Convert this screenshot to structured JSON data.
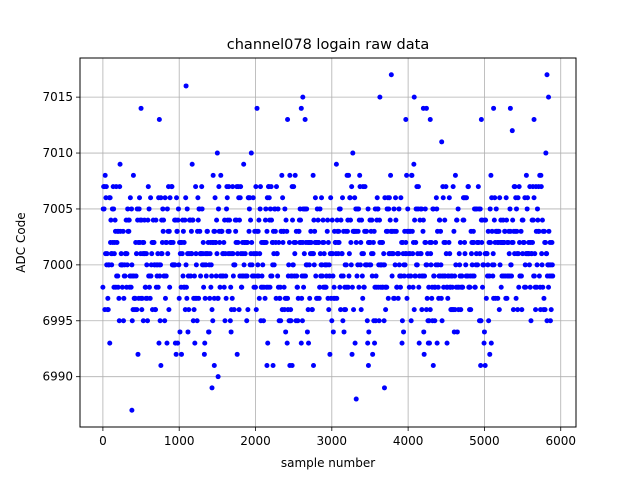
{
  "chart_data": {
    "type": "scatter",
    "title": "channel078 logain raw data",
    "xlabel": "sample number",
    "ylabel": "ADC Code",
    "xlim": [
      -300,
      6200
    ],
    "ylim": [
      6985.5,
      7018.5
    ],
    "xticks": [
      0,
      1000,
      2000,
      3000,
      4000,
      5000,
      6000
    ],
    "yticks": [
      6990,
      6995,
      7000,
      7005,
      7010,
      7015
    ],
    "grid": true,
    "marker_color": "#0000ff",
    "n_samples": 5900,
    "series": [
      {
        "x_range": [
          0,
          5900
        ],
        "y_band": [
          6994,
          7008
        ],
        "y_center": 7001,
        "outliers": [
          [
            380,
            6987
          ],
          [
            1430,
            6989
          ],
          [
            1510,
            6990
          ],
          [
            3320,
            6988
          ],
          [
            3690,
            6989
          ],
          [
            1090,
            7016
          ],
          [
            3780,
            7017
          ],
          [
            5820,
            7017
          ],
          [
            5840,
            7015
          ],
          [
            2620,
            7015
          ],
          [
            3630,
            7015
          ],
          [
            4080,
            7015
          ],
          [
            500,
            7014
          ],
          [
            2020,
            7014
          ],
          [
            2600,
            7014
          ],
          [
            5120,
            7014
          ],
          [
            5340,
            7014
          ],
          [
            4200,
            7014
          ],
          [
            4240,
            7014
          ],
          [
            1460,
            6991
          ],
          [
            2150,
            6991
          ],
          [
            2230,
            6991
          ],
          [
            2450,
            6991
          ],
          [
            2480,
            6991
          ],
          [
            2760,
            6991
          ],
          [
            3480,
            6991
          ],
          [
            4330,
            6991
          ],
          [
            4950,
            6991
          ],
          [
            5010,
            6991
          ],
          [
            760,
            6991
          ],
          [
            740,
            7013
          ],
          [
            3970,
            7013
          ],
          [
            4290,
            7013
          ],
          [
            4960,
            7013
          ],
          [
            5650,
            7013
          ],
          [
            2420,
            7013
          ],
          [
            2650,
            7013
          ]
        ]
      }
    ]
  }
}
